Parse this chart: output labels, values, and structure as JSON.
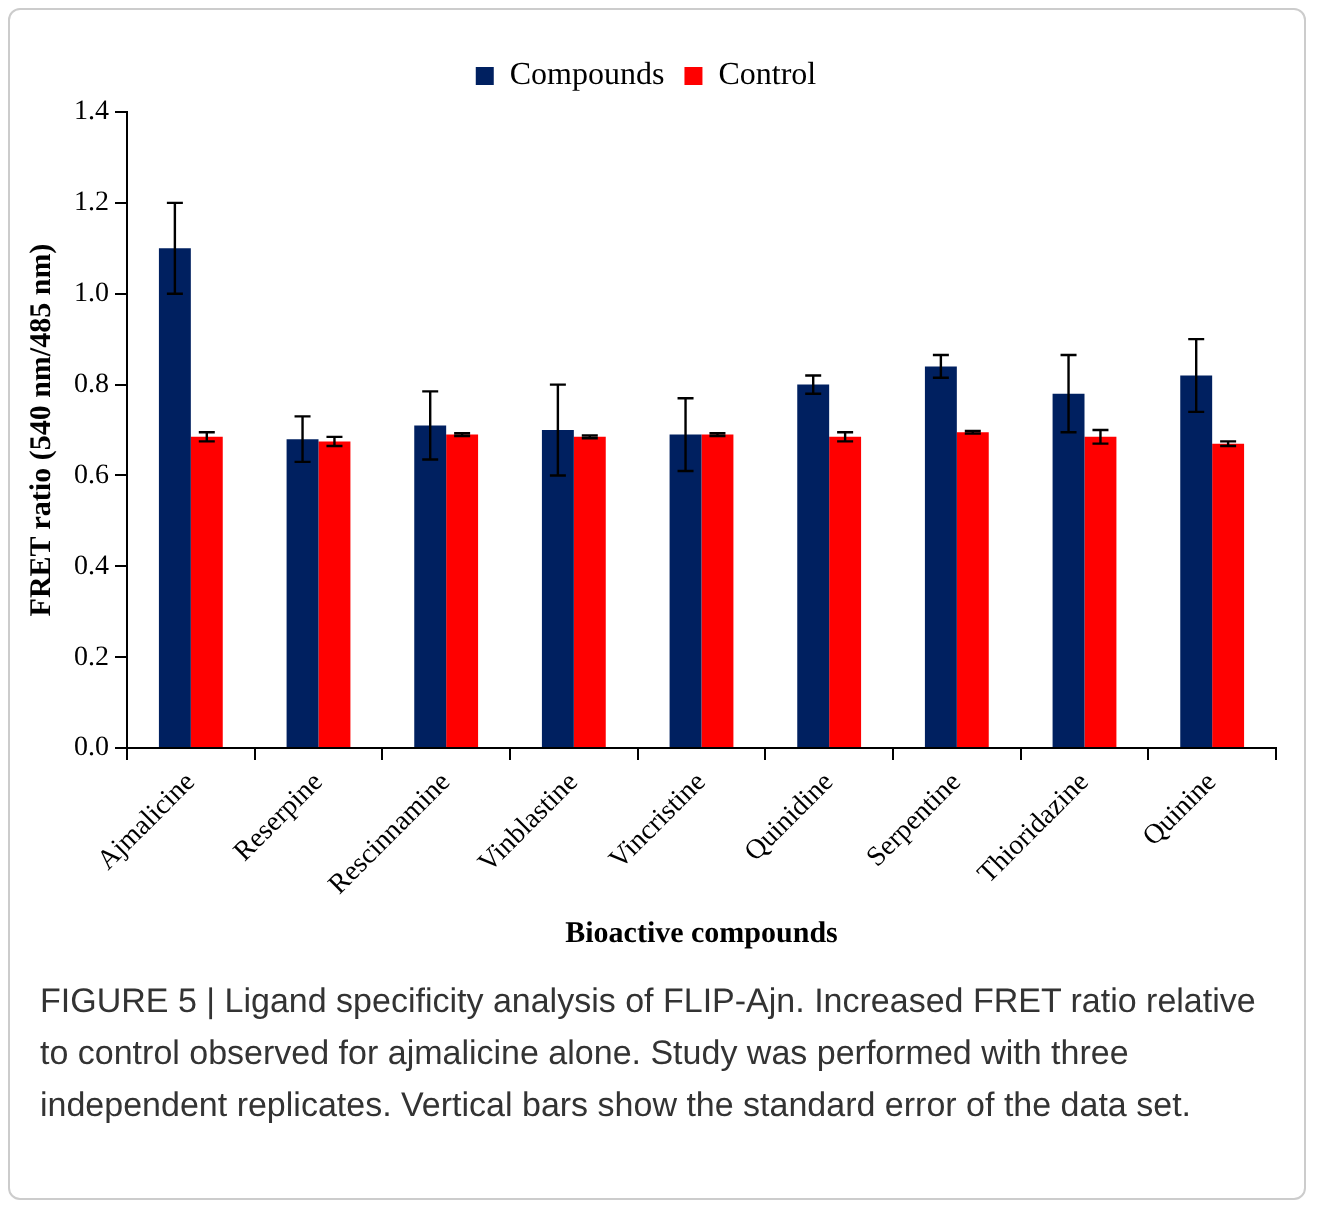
{
  "chart_data": {
    "type": "bar",
    "categories": [
      "Ajmalicine",
      "Reserpine",
      "Rescinnamine",
      "Vinblastine",
      "Vincristine",
      "Quinidine",
      "Serpentine",
      "Thioridazine",
      "Quinine"
    ],
    "series": [
      {
        "name": "Compounds",
        "color": "#002060",
        "values": [
          1.1,
          0.68,
          0.71,
          0.7,
          0.69,
          0.8,
          0.84,
          0.78,
          0.82
        ],
        "errors": [
          0.1,
          0.05,
          0.075,
          0.1,
          0.08,
          0.02,
          0.025,
          0.085,
          0.08
        ]
      },
      {
        "name": "Control",
        "color": "#ff0000",
        "values": [
          0.685,
          0.675,
          0.69,
          0.685,
          0.69,
          0.685,
          0.695,
          0.685,
          0.67
        ],
        "errors": [
          0.01,
          0.01,
          0.003,
          0.003,
          0.003,
          0.01,
          0.003,
          0.015,
          0.005
        ]
      }
    ],
    "xlabel": "Bioactive compounds",
    "ylabel": "FRET ratio (540 nm/485 nm)",
    "ylim": [
      0,
      1.4
    ],
    "yticks": [
      {
        "value": 0,
        "label": "0.0"
      },
      {
        "value": 0.2,
        "label": "0.2"
      },
      {
        "value": 0.4,
        "label": "0.4"
      },
      {
        "value": 0.6,
        "label": "0.6"
      },
      {
        "value": 0.8,
        "label": "0.8"
      },
      {
        "value": 1,
        "label": "1.0"
      },
      {
        "value": 1.2,
        "label": "1.2"
      },
      {
        "value": 1.4,
        "label": "1.4"
      }
    ],
    "grid": false,
    "legend": "top",
    "annotations": [
      "FIGURE 5 | Ligand specificity analysis of FLIP-Ajn. Increased FRET ratio relative to control observed for ajmalicine alone. Study was performed with three independent replicates. Vertical bars show the standard error of the data set."
    ]
  }
}
